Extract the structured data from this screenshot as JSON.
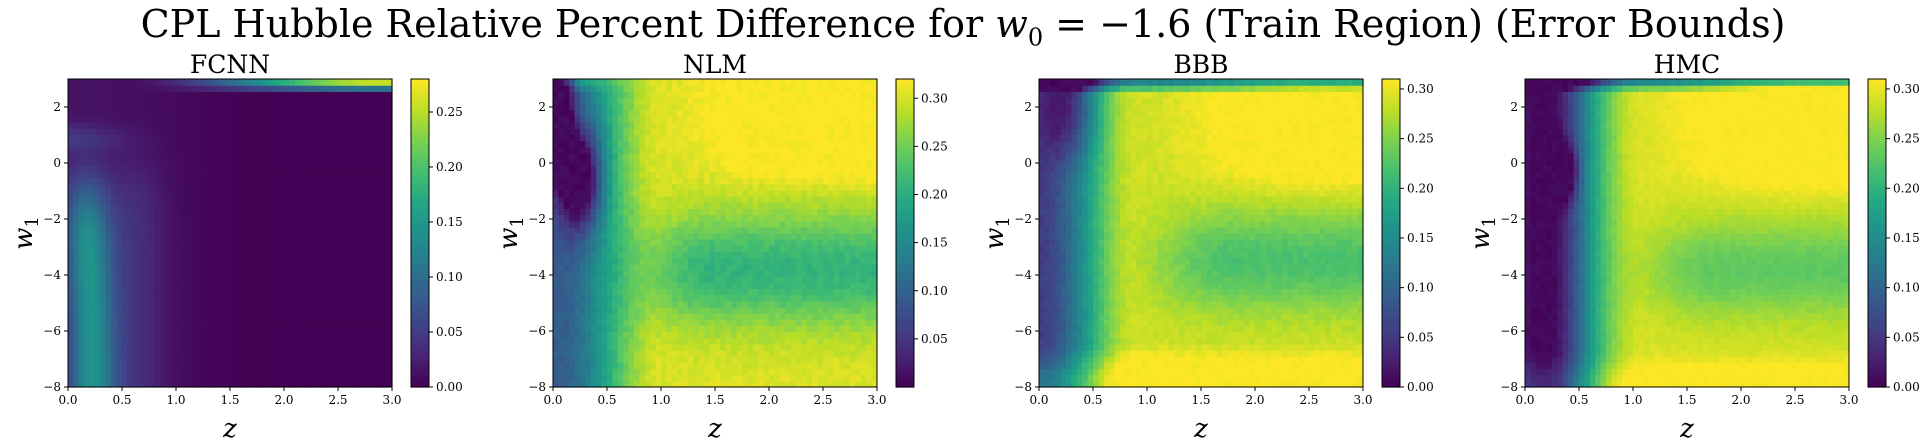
{
  "chart_data": {
    "type": "heatmap",
    "title": {
      "prefix": "CPL Hubble Relative Percent Difference for ",
      "math_var": "w",
      "math_sub": "0",
      "math_eq": " = −1.6",
      "suffix": " (Train Region) (Error Bounds)"
    },
    "xlabel": "z",
    "ylabel": {
      "var": "w",
      "sub": "1"
    },
    "xlim": [
      0.0,
      3.0
    ],
    "ylim": [
      -8,
      3
    ],
    "x_ticks": [
      "0.0",
      "0.5",
      "1.0",
      "1.5",
      "2.0",
      "2.5",
      "3.0"
    ],
    "y_ticks": [
      "−8",
      "−6",
      "−4",
      "−2",
      "0",
      "2"
    ],
    "colormap": "viridis",
    "panels": [
      {
        "name": "FCNN",
        "clim": [
          0.0,
          0.28
        ],
        "colorbar_ticks": [
          "0.00",
          "0.05",
          "0.10",
          "0.15",
          "0.20",
          "0.25"
        ]
      },
      {
        "name": "NLM",
        "clim": [
          0.0,
          0.32
        ],
        "colorbar_ticks": [
          "0.05",
          "0.10",
          "0.15",
          "0.20",
          "0.25",
          "0.30"
        ]
      },
      {
        "name": "BBB",
        "clim": [
          0.0,
          0.31
        ],
        "colorbar_ticks": [
          "0.00",
          "0.05",
          "0.10",
          "0.15",
          "0.20",
          "0.25",
          "0.30"
        ]
      },
      {
        "name": "HMC",
        "clim": [
          0.0,
          0.31
        ],
        "colorbar_ticks": [
          "0.00",
          "0.05",
          "0.10",
          "0.15",
          "0.20",
          "0.25",
          "0.30"
        ]
      }
    ]
  }
}
